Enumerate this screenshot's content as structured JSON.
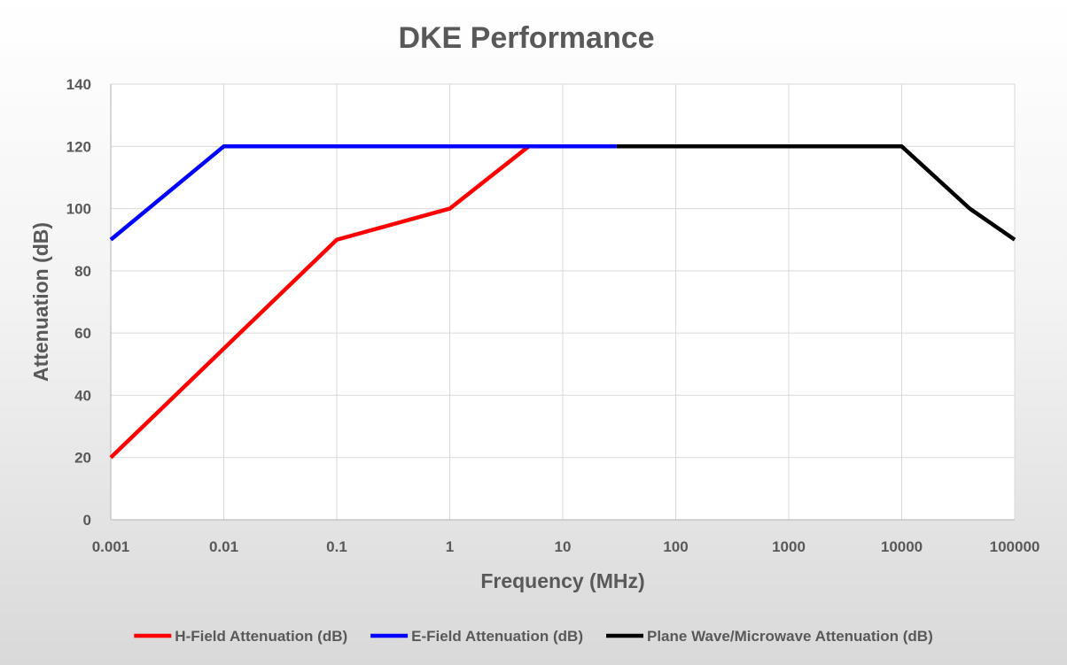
{
  "chart_data": {
    "type": "line",
    "title": "DKE Performance",
    "xlabel": "Frequency (MHz)",
    "ylabel": "Attenuation (dB)",
    "x_scale": "log",
    "xlim": [
      0.001,
      100000
    ],
    "ylim": [
      0,
      140
    ],
    "x_ticks": [
      0.001,
      0.01,
      0.1,
      1,
      10,
      100,
      1000,
      10000,
      100000
    ],
    "x_tick_labels": [
      "0.001",
      "0.01",
      "0.1",
      "1",
      "10",
      "100",
      "1000",
      "10000",
      "100000"
    ],
    "y_ticks": [
      0,
      20,
      40,
      60,
      80,
      100,
      120,
      140
    ],
    "y_tick_labels": [
      "0",
      "20",
      "40",
      "60",
      "80",
      "100",
      "120",
      "140"
    ],
    "grid": true,
    "legend_position": "bottom",
    "series": [
      {
        "name": "H-Field Attenuation (dB)",
        "color": "#ff0000",
        "points": [
          [
            0.001,
            20
          ],
          [
            0.01,
            55
          ],
          [
            0.1,
            90
          ],
          [
            1,
            100
          ],
          [
            5,
            120
          ]
        ]
      },
      {
        "name": "E-Field Attenuation (dB)",
        "color": "#0000ff",
        "points": [
          [
            0.001,
            90
          ],
          [
            0.01,
            120
          ],
          [
            30,
            120
          ]
        ]
      },
      {
        "name": "Plane Wave/Microwave Attenuation (dB)",
        "color": "#000000",
        "points": [
          [
            30,
            120
          ],
          [
            10000,
            120
          ],
          [
            40000,
            100
          ],
          [
            100000,
            90
          ]
        ]
      }
    ]
  }
}
